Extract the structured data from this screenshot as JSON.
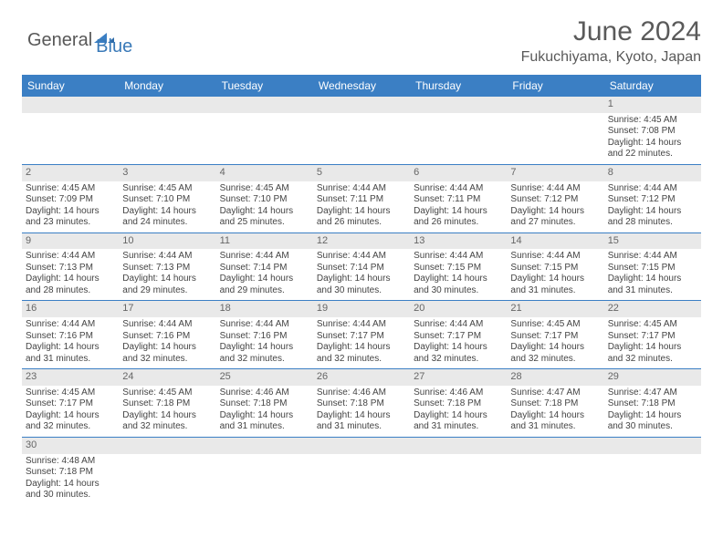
{
  "logo": {
    "text1": "General",
    "text2": "Blue",
    "icon_color": "#3b7fc4"
  },
  "title": "June 2024",
  "location": "Fukuchiyama, Kyoto, Japan",
  "colors": {
    "header_bg": "#3b7fc4",
    "header_text": "#ffffff",
    "daynum_bg": "#e9e9e9",
    "text": "#444444",
    "border": "#3b7fc4"
  },
  "dayHeaders": [
    "Sunday",
    "Monday",
    "Tuesday",
    "Wednesday",
    "Thursday",
    "Friday",
    "Saturday"
  ],
  "weeks": [
    [
      null,
      null,
      null,
      null,
      null,
      null,
      {
        "n": "1",
        "sr": "4:45 AM",
        "ss": "7:08 PM",
        "dl": "14 hours and 22 minutes."
      }
    ],
    [
      {
        "n": "2",
        "sr": "4:45 AM",
        "ss": "7:09 PM",
        "dl": "14 hours and 23 minutes."
      },
      {
        "n": "3",
        "sr": "4:45 AM",
        "ss": "7:10 PM",
        "dl": "14 hours and 24 minutes."
      },
      {
        "n": "4",
        "sr": "4:45 AM",
        "ss": "7:10 PM",
        "dl": "14 hours and 25 minutes."
      },
      {
        "n": "5",
        "sr": "4:44 AM",
        "ss": "7:11 PM",
        "dl": "14 hours and 26 minutes."
      },
      {
        "n": "6",
        "sr": "4:44 AM",
        "ss": "7:11 PM",
        "dl": "14 hours and 26 minutes."
      },
      {
        "n": "7",
        "sr": "4:44 AM",
        "ss": "7:12 PM",
        "dl": "14 hours and 27 minutes."
      },
      {
        "n": "8",
        "sr": "4:44 AM",
        "ss": "7:12 PM",
        "dl": "14 hours and 28 minutes."
      }
    ],
    [
      {
        "n": "9",
        "sr": "4:44 AM",
        "ss": "7:13 PM",
        "dl": "14 hours and 28 minutes."
      },
      {
        "n": "10",
        "sr": "4:44 AM",
        "ss": "7:13 PM",
        "dl": "14 hours and 29 minutes."
      },
      {
        "n": "11",
        "sr": "4:44 AM",
        "ss": "7:14 PM",
        "dl": "14 hours and 29 minutes."
      },
      {
        "n": "12",
        "sr": "4:44 AM",
        "ss": "7:14 PM",
        "dl": "14 hours and 30 minutes."
      },
      {
        "n": "13",
        "sr": "4:44 AM",
        "ss": "7:15 PM",
        "dl": "14 hours and 30 minutes."
      },
      {
        "n": "14",
        "sr": "4:44 AM",
        "ss": "7:15 PM",
        "dl": "14 hours and 31 minutes."
      },
      {
        "n": "15",
        "sr": "4:44 AM",
        "ss": "7:15 PM",
        "dl": "14 hours and 31 minutes."
      }
    ],
    [
      {
        "n": "16",
        "sr": "4:44 AM",
        "ss": "7:16 PM",
        "dl": "14 hours and 31 minutes."
      },
      {
        "n": "17",
        "sr": "4:44 AM",
        "ss": "7:16 PM",
        "dl": "14 hours and 32 minutes."
      },
      {
        "n": "18",
        "sr": "4:44 AM",
        "ss": "7:16 PM",
        "dl": "14 hours and 32 minutes."
      },
      {
        "n": "19",
        "sr": "4:44 AM",
        "ss": "7:17 PM",
        "dl": "14 hours and 32 minutes."
      },
      {
        "n": "20",
        "sr": "4:44 AM",
        "ss": "7:17 PM",
        "dl": "14 hours and 32 minutes."
      },
      {
        "n": "21",
        "sr": "4:45 AM",
        "ss": "7:17 PM",
        "dl": "14 hours and 32 minutes."
      },
      {
        "n": "22",
        "sr": "4:45 AM",
        "ss": "7:17 PM",
        "dl": "14 hours and 32 minutes."
      }
    ],
    [
      {
        "n": "23",
        "sr": "4:45 AM",
        "ss": "7:17 PM",
        "dl": "14 hours and 32 minutes."
      },
      {
        "n": "24",
        "sr": "4:45 AM",
        "ss": "7:18 PM",
        "dl": "14 hours and 32 minutes."
      },
      {
        "n": "25",
        "sr": "4:46 AM",
        "ss": "7:18 PM",
        "dl": "14 hours and 31 minutes."
      },
      {
        "n": "26",
        "sr": "4:46 AM",
        "ss": "7:18 PM",
        "dl": "14 hours and 31 minutes."
      },
      {
        "n": "27",
        "sr": "4:46 AM",
        "ss": "7:18 PM",
        "dl": "14 hours and 31 minutes."
      },
      {
        "n": "28",
        "sr": "4:47 AM",
        "ss": "7:18 PM",
        "dl": "14 hours and 31 minutes."
      },
      {
        "n": "29",
        "sr": "4:47 AM",
        "ss": "7:18 PM",
        "dl": "14 hours and 30 minutes."
      }
    ],
    [
      {
        "n": "30",
        "sr": "4:48 AM",
        "ss": "7:18 PM",
        "dl": "14 hours and 30 minutes."
      },
      null,
      null,
      null,
      null,
      null,
      null
    ]
  ],
  "labels": {
    "sunrise": "Sunrise: ",
    "sunset": "Sunset: ",
    "daylight": "Daylight: "
  }
}
